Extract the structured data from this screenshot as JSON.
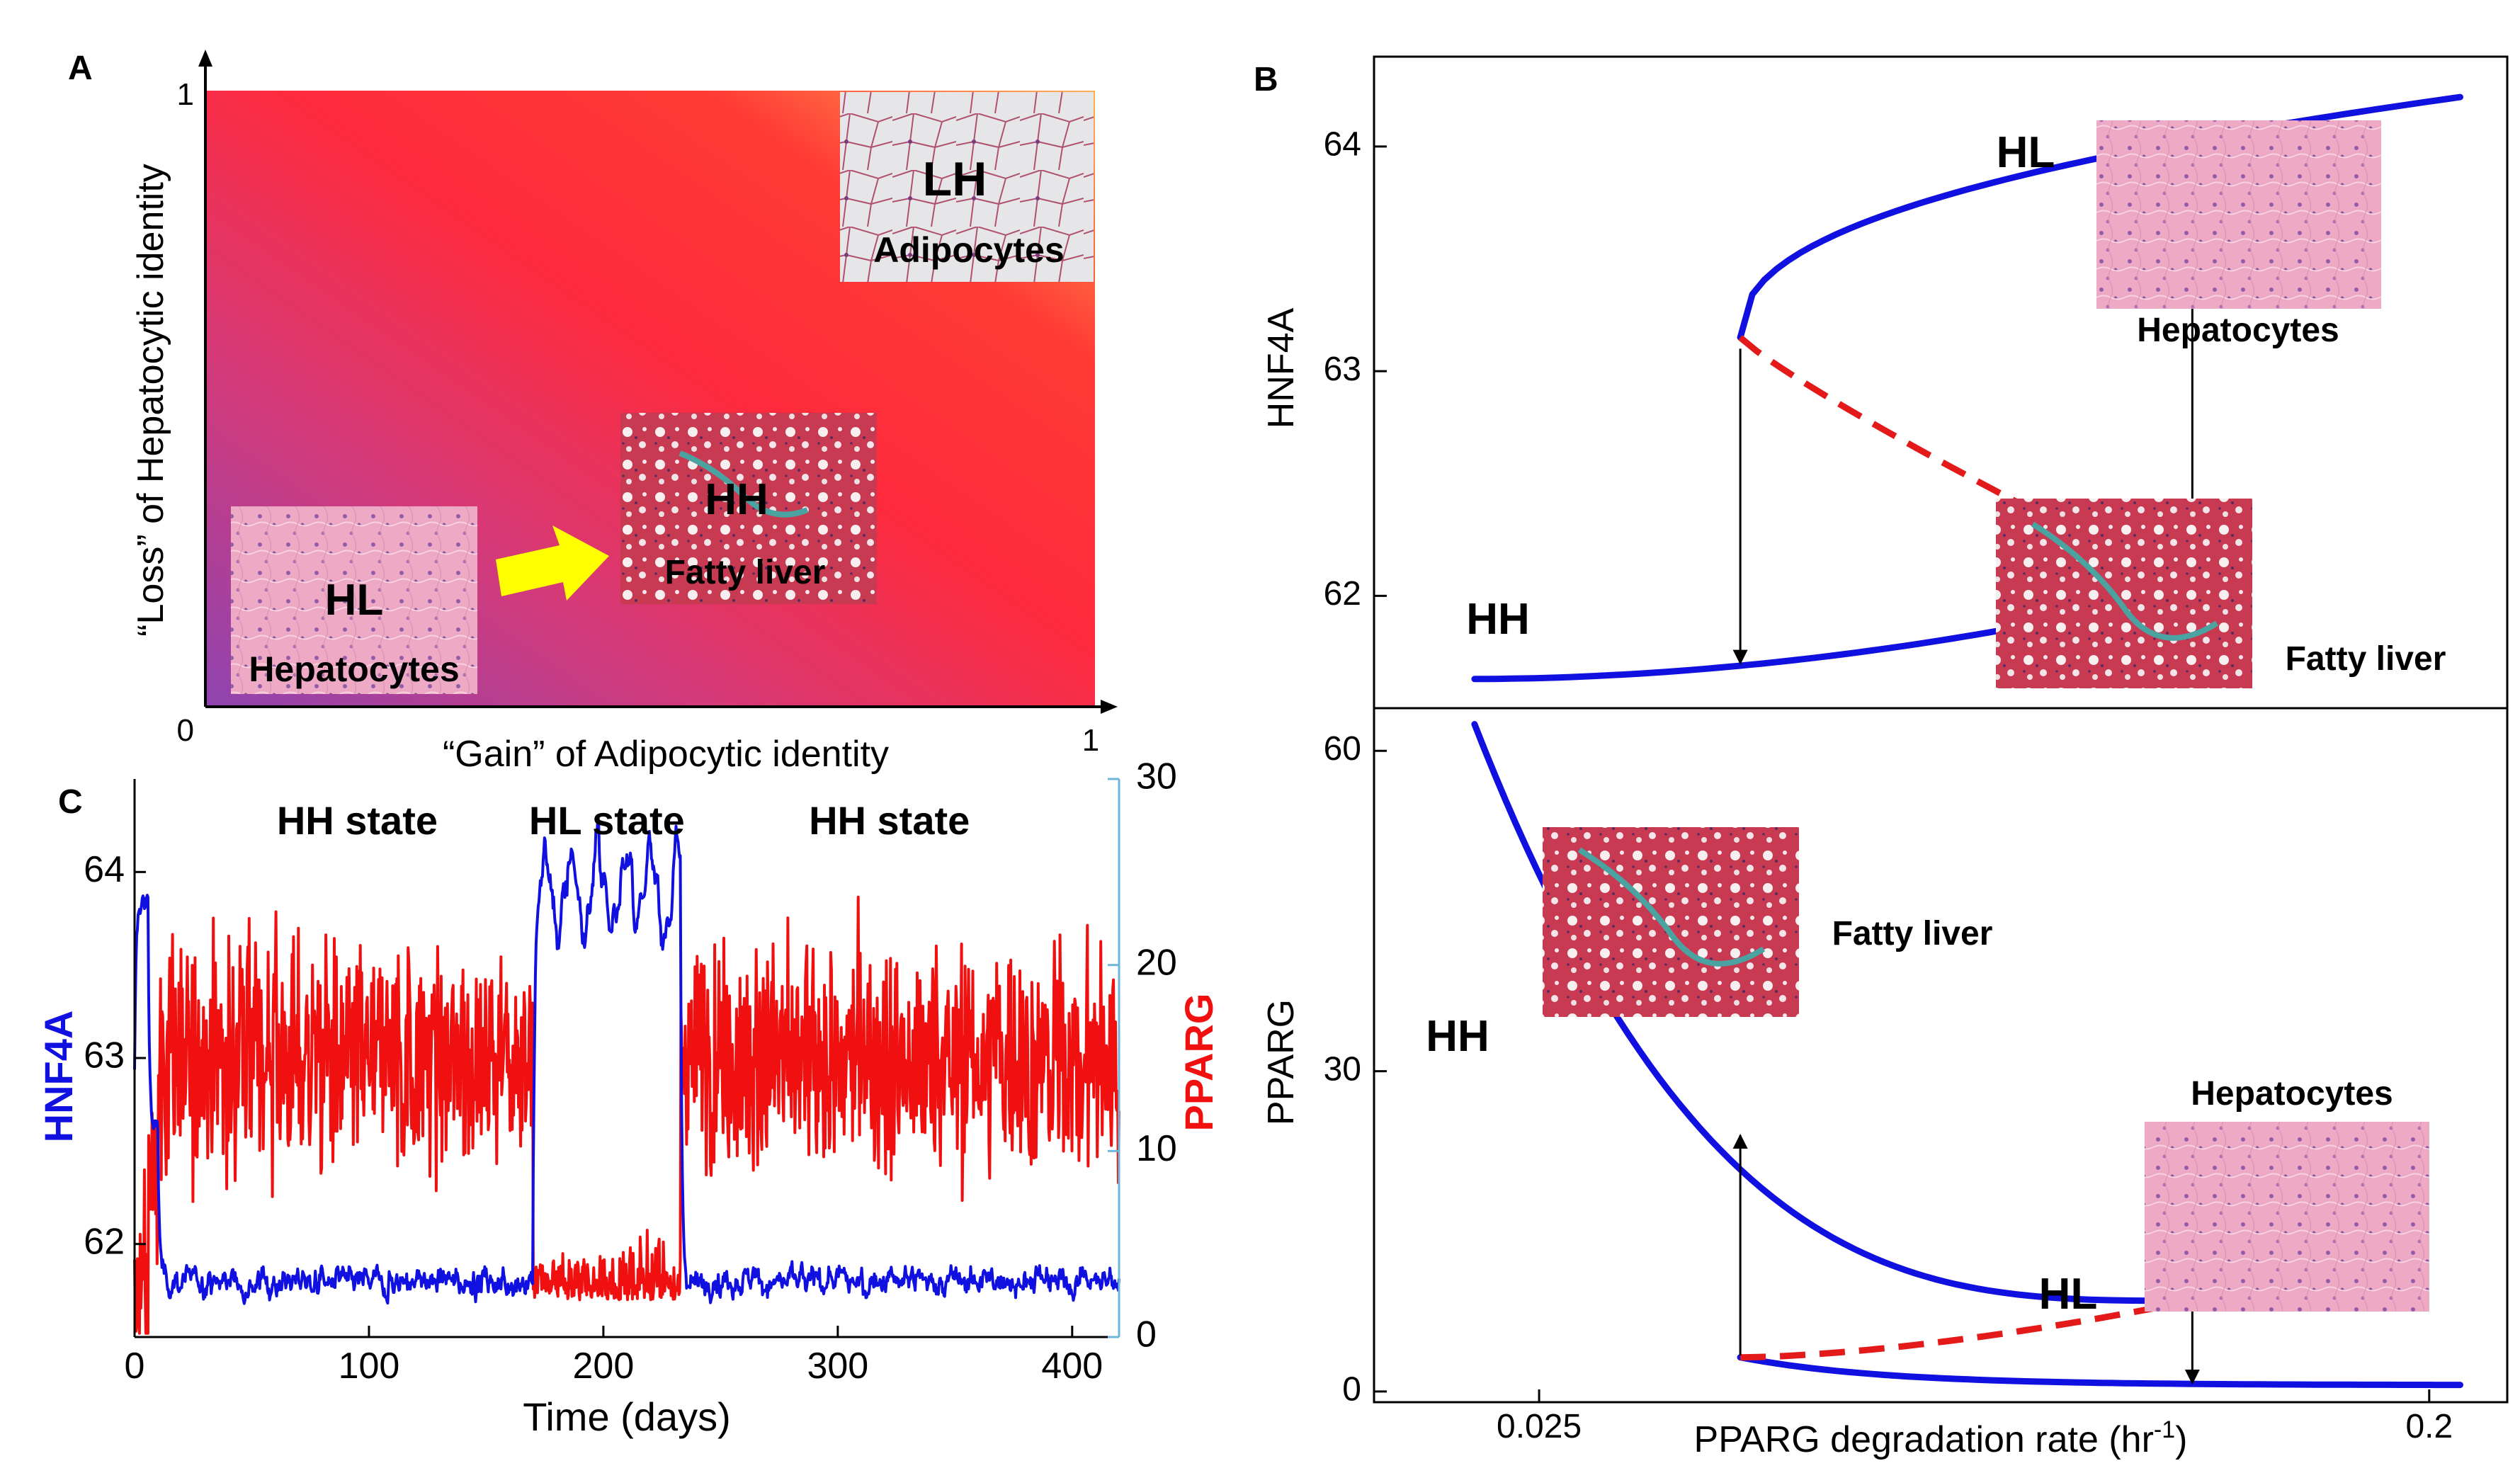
{
  "figure": {
    "panel_labels": [
      "A",
      "B",
      "C"
    ]
  },
  "colors": {
    "blue": "#1010e0",
    "red": "#f01010",
    "dashed_red": "#e41a1a",
    "gradient_purple": "#9c3aa0",
    "gradient_red": "#ff2a3a",
    "gradient_orange": "#ffa64d",
    "arrow_yellow": "#ffff00",
    "tissue_pink": "#e9a0c0",
    "axis_cyan": "#6fb7d8"
  },
  "chart_data": [
    {
      "id": "A",
      "type": "heatmap",
      "title": "",
      "xlabel": "“Gain” of Adipocytic identity",
      "ylabel": "“Loss” of Hepatocytic identity",
      "xlim": [
        0,
        1
      ],
      "ylim": [
        0,
        1
      ],
      "x_ticks": [
        "0",
        "1"
      ],
      "y_ticks": [
        "1"
      ],
      "states": [
        {
          "code": "HL",
          "name": "Hepatocytes",
          "x": 0.18,
          "y": 0.2
        },
        {
          "code": "HH",
          "name": "Fatty liver",
          "x": 0.6,
          "y": 0.3
        },
        {
          "code": "LH",
          "name": "Adipocytes",
          "x": 0.87,
          "y": 0.87
        }
      ],
      "transition": {
        "from": "HL",
        "to": "HH"
      }
    },
    {
      "id": "B-top",
      "type": "line",
      "ylabel": "HNF4A",
      "xscale": "log",
      "xlim": [
        0.017,
        0.24
      ],
      "ylim": [
        61.5,
        64.4
      ],
      "y_ticks": [
        "62",
        "63",
        "64"
      ],
      "fold_points": {
        "lower_x": 0.04,
        "upper_x": 0.115
      },
      "series": [
        {
          "name": "stable",
          "style": "solid",
          "color": "#1010e0"
        },
        {
          "name": "unstable",
          "style": "dashed",
          "color": "#e41a1a"
        }
      ],
      "labels": [
        "HL",
        "HH"
      ],
      "insets": [
        {
          "name": "Hepatocytes"
        },
        {
          "name": "Fatty liver"
        }
      ]
    },
    {
      "id": "B-bottom",
      "type": "line",
      "ylabel": "PPARG",
      "xlabel_prefix": "PPARG degradation rate (hr",
      "xlabel_sup": "-1",
      "xlabel_suffix": ")",
      "xscale": "log",
      "xlim": [
        0.017,
        0.24
      ],
      "ylim": [
        -1,
        64
      ],
      "x_ticks": [
        "0.025",
        "0.2"
      ],
      "y_ticks": [
        "0",
        "30",
        "60"
      ],
      "fold_points": {
        "lower_x": 0.04,
        "upper_x": 0.115
      },
      "series": [
        {
          "name": "stable",
          "style": "solid",
          "color": "#1010e0"
        },
        {
          "name": "unstable",
          "style": "dashed",
          "color": "#e41a1a"
        }
      ],
      "labels": [
        "HH",
        "HL"
      ],
      "insets": [
        {
          "name": "Fatty liver"
        },
        {
          "name": "Hepatocytes"
        }
      ]
    },
    {
      "id": "C",
      "type": "line",
      "xlabel": "Time (days)",
      "ylabel_left": "HNF4A",
      "ylabel_right": "PPARG",
      "xlim": [
        0,
        420
      ],
      "ylim_left": [
        61.5,
        64.5
      ],
      "ylim_right": [
        0,
        30
      ],
      "x_ticks": [
        "0",
        "100",
        "200",
        "300",
        "400"
      ],
      "y_ticks_left": [
        "62",
        "63",
        "64"
      ],
      "y_ticks_right": [
        "0",
        "10",
        "20",
        "30"
      ],
      "states": [
        {
          "label": "HH state",
          "start": 0,
          "end": 170,
          "hnf4a_mean": 61.8,
          "pparg_mean": 15
        },
        {
          "label": "HL state",
          "start": 170,
          "end": 233,
          "hnf4a_mean": 63.9,
          "pparg_mean": 2
        },
        {
          "label": "HH state",
          "start": 233,
          "end": 420,
          "hnf4a_mean": 61.8,
          "pparg_mean": 15
        }
      ],
      "series": [
        {
          "name": "HNF4A",
          "color": "#1010e0",
          "axis": "left"
        },
        {
          "name": "PPARG",
          "color": "#f01010",
          "axis": "right"
        }
      ]
    }
  ]
}
